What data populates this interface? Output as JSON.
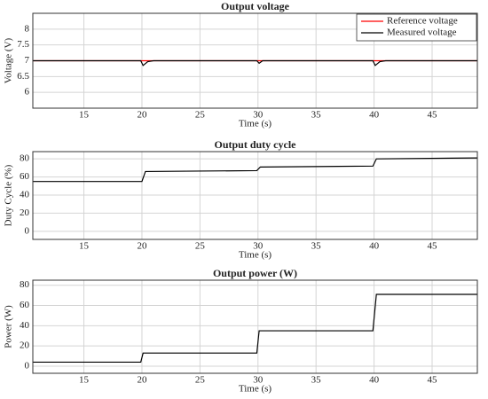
{
  "chart_data": [
    {
      "type": "line",
      "title": "Output voltage",
      "x_label": "Time (s)",
      "y_label": "Voltage (V)",
      "x": [
        10.6,
        19.9,
        20.1,
        20.5,
        21,
        29.9,
        30.1,
        30.4,
        39.9,
        40.1,
        40.5,
        41,
        48.9
      ],
      "series": [
        {
          "name": "Reference voltage",
          "color": "#ff0000",
          "values": [
            7,
            7,
            7,
            7,
            7,
            7,
            7,
            7,
            7,
            7,
            7,
            7,
            7
          ]
        },
        {
          "name": "Measured voltage",
          "color": "#000000",
          "values": [
            7,
            7,
            6.85,
            6.97,
            7,
            7,
            6.92,
            7,
            7,
            6.85,
            6.97,
            7,
            7
          ]
        }
      ],
      "xlim": [
        10.6,
        48.9
      ],
      "xticks": [
        15,
        20,
        25,
        30,
        35,
        40,
        45
      ],
      "ylim": [
        5.5,
        8.5
      ],
      "yticks": [
        6,
        6.5,
        7,
        7.5,
        8
      ],
      "grid": true,
      "legend": "upper right"
    },
    {
      "type": "line",
      "title": "Output duty cycle",
      "x_label": "Time (s)",
      "y_label": "Duty Cycle (%)",
      "x": [
        10.6,
        20.0,
        20.3,
        29.9,
        30.2,
        39.9,
        40.2,
        48.9
      ],
      "series": [
        {
          "color": "#000000",
          "values": [
            55,
            55,
            66,
            67,
            71,
            72,
            80,
            81
          ]
        }
      ],
      "xlim": [
        10.6,
        48.9
      ],
      "xticks": [
        15,
        20,
        25,
        30,
        35,
        40,
        45
      ],
      "ylim": [
        -9,
        88
      ],
      "yticks": [
        0,
        20,
        40,
        60,
        80
      ],
      "grid": true
    },
    {
      "type": "line",
      "title": "Output power (W)",
      "x_label": "Time (s)",
      "y_label": "Power (W)",
      "x": [
        10.6,
        19.9,
        20.1,
        29.9,
        30.1,
        39.9,
        40.2,
        48.9
      ],
      "series": [
        {
          "color": "#000000",
          "values": [
            4,
            4,
            13,
            13,
            35,
            35,
            71,
            71
          ]
        }
      ],
      "xlim": [
        10.6,
        48.9
      ],
      "xticks": [
        15,
        20,
        25,
        30,
        35,
        40,
        45
      ],
      "ylim": [
        -7,
        85
      ],
      "yticks": [
        0,
        20,
        40,
        60,
        80
      ],
      "grid": true
    }
  ]
}
